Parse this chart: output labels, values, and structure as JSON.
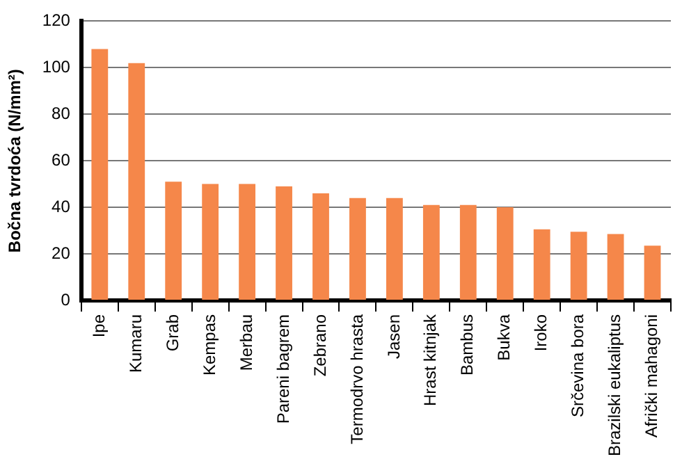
{
  "chart_data": {
    "type": "bar",
    "ylabel": "Bočna tvrdoća (N/mm²)",
    "categories": [
      "Ipe",
      "Kumaru",
      "Grab",
      "Kempas",
      "Merbau",
      "Pareni bagrem",
      "Zebrano",
      "Termodrvo hrasta",
      "Jasen",
      "Hrast kitnjak",
      "Bambus",
      "Bukva",
      "Iroko",
      "Srčevina bora",
      "Brazilski eukaliptus",
      "Afrički mahagoni"
    ],
    "values": [
      108,
      102,
      51,
      50,
      50,
      49,
      46,
      44,
      44,
      41,
      41,
      40,
      30.5,
      29.5,
      28.5,
      23.5
    ],
    "color": "#f5874a",
    "ylim": [
      0,
      120
    ],
    "yticks": [
      0,
      20,
      40,
      60,
      80,
      100,
      120
    ],
    "grid": "y",
    "legend": false
  }
}
